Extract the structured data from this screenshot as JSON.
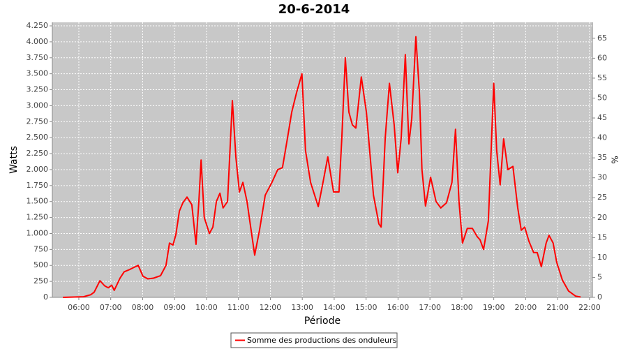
{
  "chart_data": {
    "type": "line",
    "title": "20-6-2014",
    "x_label": "Période",
    "y_label": "Watts",
    "y2_label": "%",
    "x": [
      5.5,
      6.15,
      6.37,
      6.48,
      6.66,
      6.81,
      6.92,
      7.03,
      7.11,
      7.29,
      7.42,
      7.57,
      7.73,
      7.86,
      8.01,
      8.16,
      8.34,
      8.56,
      8.73,
      8.84,
      8.95,
      9.04,
      9.15,
      9.26,
      9.39,
      9.54,
      9.67,
      9.76,
      9.83,
      9.93,
      10.09,
      10.2,
      10.31,
      10.42,
      10.52,
      10.66,
      10.81,
      10.92,
      11.03,
      11.14,
      11.27,
      11.51,
      11.66,
      11.84,
      12.05,
      12.23,
      12.38,
      12.54,
      12.67,
      12.82,
      12.99,
      13.1,
      13.26,
      13.5,
      13.65,
      13.8,
      13.98,
      14.15,
      14.24,
      14.35,
      14.46,
      14.57,
      14.68,
      14.85,
      15.01,
      15.23,
      15.4,
      15.47,
      15.6,
      15.73,
      15.88,
      15.99,
      16.1,
      16.23,
      16.34,
      16.43,
      16.56,
      16.67,
      16.75,
      16.86,
      17.02,
      17.19,
      17.34,
      17.52,
      17.69,
      17.8,
      17.91,
      18.02,
      18.17,
      18.33,
      18.48,
      18.57,
      18.68,
      18.83,
      19.0,
      19.09,
      19.2,
      19.31,
      19.44,
      19.6,
      19.75,
      19.86,
      19.97,
      20.1,
      20.25,
      20.36,
      20.49,
      20.64,
      20.73,
      20.86,
      20.97,
      21.15,
      21.34,
      21.56,
      21.72
    ],
    "series": [
      {
        "name": "Somme des productions des onduleurs",
        "color": "#ff0000",
        "values": [
          0,
          10,
          40,
          80,
          260,
          180,
          150,
          190,
          110,
          300,
          400,
          430,
          470,
          500,
          330,
          290,
          300,
          340,
          500,
          850,
          820,
          980,
          1350,
          1480,
          1570,
          1450,
          830,
          1500,
          2150,
          1250,
          1000,
          1100,
          1500,
          1630,
          1400,
          1500,
          3080,
          2200,
          1650,
          1800,
          1500,
          660,
          1050,
          1600,
          1800,
          2000,
          2030,
          2500,
          2900,
          3200,
          3500,
          2300,
          1800,
          1420,
          1800,
          2200,
          1650,
          1650,
          2500,
          3750,
          2900,
          2700,
          2650,
          3450,
          2900,
          1600,
          1150,
          1100,
          2500,
          3350,
          2700,
          1950,
          2500,
          3800,
          2400,
          2800,
          4080,
          3200,
          2000,
          1430,
          1880,
          1500,
          1400,
          1480,
          1800,
          2630,
          1500,
          850,
          1080,
          1080,
          950,
          900,
          750,
          1200,
          3350,
          2300,
          1760,
          2480,
          2000,
          2050,
          1400,
          1050,
          1100,
          880,
          700,
          700,
          480,
          850,
          970,
          850,
          550,
          270,
          100,
          20,
          5
        ]
      }
    ],
    "xlim": [
      5.17,
      22.09
    ],
    "xticks": [
      {
        "value": 6,
        "label": "06:00"
      },
      {
        "value": 7,
        "label": "07:00"
      },
      {
        "value": 8,
        "label": "08:00"
      },
      {
        "value": 9,
        "label": "09:00"
      },
      {
        "value": 10,
        "label": "10:00"
      },
      {
        "value": 11,
        "label": "11:00"
      },
      {
        "value": 12,
        "label": "12:00"
      },
      {
        "value": 13,
        "label": "13:00"
      },
      {
        "value": 14,
        "label": "14:00"
      },
      {
        "value": 15,
        "label": "15:00"
      },
      {
        "value": 16,
        "label": "16:00"
      },
      {
        "value": 17,
        "label": "17:00"
      },
      {
        "value": 18,
        "label": "18:00"
      },
      {
        "value": 19,
        "label": "19:00"
      },
      {
        "value": 20,
        "label": "20:00"
      },
      {
        "value": 21,
        "label": "21:00"
      },
      {
        "value": 22,
        "label": "22:00"
      }
    ],
    "ylim": [
      0,
      4305
    ],
    "yticks": [
      0,
      250,
      500,
      750,
      {
        "value": 1000,
        "label": "1.000"
      },
      {
        "value": 1250,
        "label": "1.250"
      },
      {
        "value": 1500,
        "label": "1.500"
      },
      {
        "value": 1750,
        "label": "1.750"
      },
      {
        "value": 2000,
        "label": "2.000"
      },
      {
        "value": 2250,
        "label": "2.250"
      },
      {
        "value": 2500,
        "label": "2.500"
      },
      {
        "value": 2750,
        "label": "2.750"
      },
      {
        "value": 3000,
        "label": "3.000"
      },
      {
        "value": 3250,
        "label": "3.250"
      },
      {
        "value": 3500,
        "label": "3.500"
      },
      {
        "value": 3750,
        "label": "3.750"
      },
      {
        "value": 4000,
        "label": "4.000"
      },
      {
        "value": 4250,
        "label": "4.250"
      }
    ],
    "y2lim": [
      0,
      69
    ],
    "y2ticks": [
      0,
      5,
      10,
      15,
      20,
      25,
      30,
      35,
      40,
      45,
      50,
      55,
      60,
      65
    ],
    "grid": true,
    "legend": "bottom"
  }
}
